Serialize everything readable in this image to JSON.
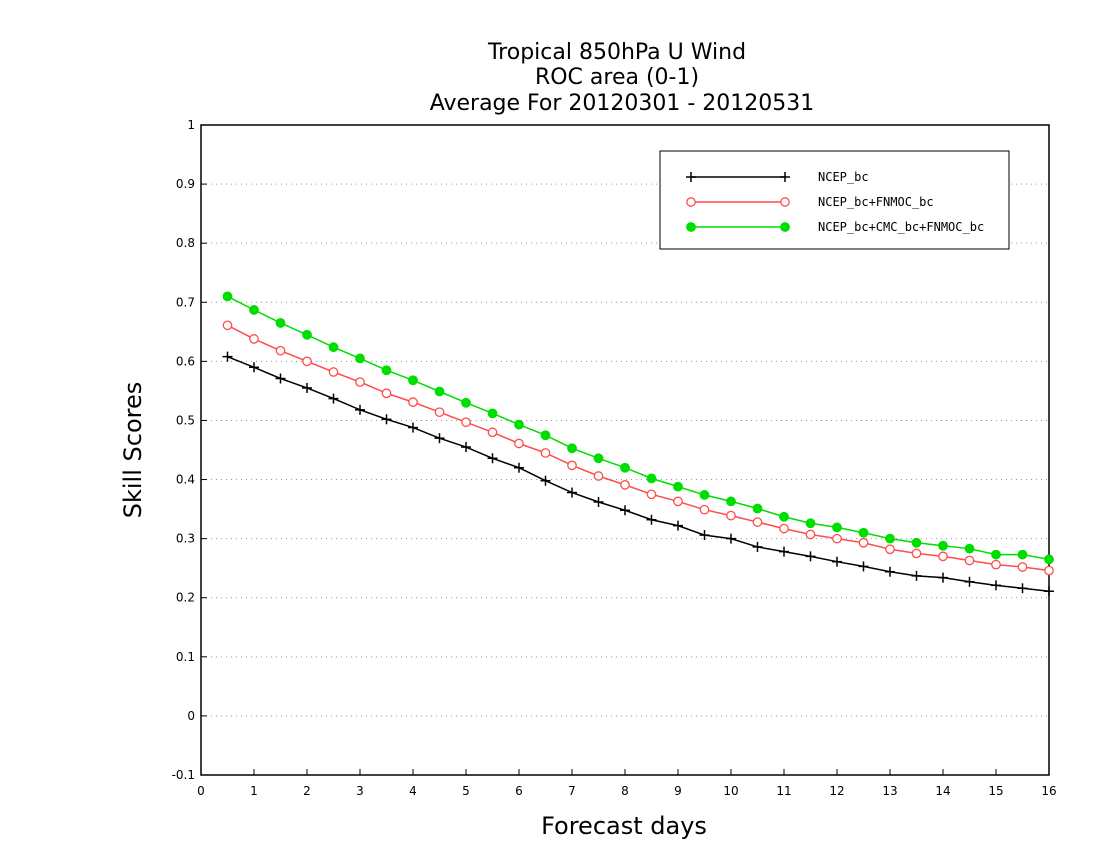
{
  "chart_data": {
    "type": "line",
    "title": [
      "Tropical 850hPa U Wind",
      "ROC area (0-1)",
      "Average For 20120301 - 20120531"
    ],
    "xlabel": "Forecast days",
    "ylabel": "Skill Scores",
    "xlim": [
      0,
      16
    ],
    "ylim": [
      -0.1,
      1
    ],
    "xticks": [
      "0",
      "1",
      "2",
      "3",
      "4",
      "5",
      "6",
      "7",
      "8",
      "9",
      "10",
      "11",
      "12",
      "13",
      "14",
      "15",
      "16"
    ],
    "yticks": [
      "-0.1",
      "0",
      "0.1",
      "0.2",
      "0.3",
      "0.4",
      "0.5",
      "0.6",
      "0.7",
      "0.8",
      "0.9",
      "1"
    ],
    "grid": true,
    "legend_position": "top-right",
    "x": [
      0.5,
      1,
      1.5,
      2,
      2.5,
      3,
      3.5,
      4,
      4.5,
      5,
      5.5,
      6,
      6.5,
      7,
      7.5,
      8,
      8.5,
      9,
      9.5,
      10,
      10.5,
      11,
      11.5,
      12,
      12.5,
      13,
      13.5,
      14,
      14.5,
      15,
      15.5,
      16
    ],
    "series": [
      {
        "name": "NCEP_bc",
        "color": "#000000",
        "marker": "plus",
        "values": [
          0.608,
          0.59,
          0.571,
          0.555,
          0.537,
          0.518,
          0.502,
          0.488,
          0.47,
          0.455,
          0.436,
          0.42,
          0.398,
          0.378,
          0.362,
          0.348,
          0.332,
          0.322,
          0.306,
          0.3,
          0.286,
          0.278,
          0.27,
          0.261,
          0.253,
          0.244,
          0.237,
          0.234,
          0.227,
          0.221,
          0.216,
          0.211
        ]
      },
      {
        "name": "NCEP_bc+FNMOC_bc",
        "color": "#ff4c4c",
        "marker": "open-circle",
        "values": [
          0.661,
          0.638,
          0.618,
          0.6,
          0.582,
          0.565,
          0.546,
          0.531,
          0.514,
          0.497,
          0.48,
          0.461,
          0.445,
          0.424,
          0.406,
          0.391,
          0.375,
          0.363,
          0.349,
          0.339,
          0.328,
          0.317,
          0.307,
          0.3,
          0.293,
          0.282,
          0.275,
          0.27,
          0.263,
          0.256,
          0.252,
          0.246
        ]
      },
      {
        "name": "NCEP_bc+CMC_bc+FNMOC_bc",
        "color": "#00dd00",
        "marker": "filled-circle",
        "values": [
          0.71,
          0.687,
          0.665,
          0.645,
          0.624,
          0.605,
          0.585,
          0.568,
          0.549,
          0.53,
          0.512,
          0.493,
          0.475,
          0.453,
          0.436,
          0.42,
          0.402,
          0.388,
          0.374,
          0.363,
          0.351,
          0.337,
          0.326,
          0.319,
          0.31,
          0.3,
          0.293,
          0.288,
          0.283,
          0.273,
          0.273,
          0.265
        ]
      }
    ]
  }
}
